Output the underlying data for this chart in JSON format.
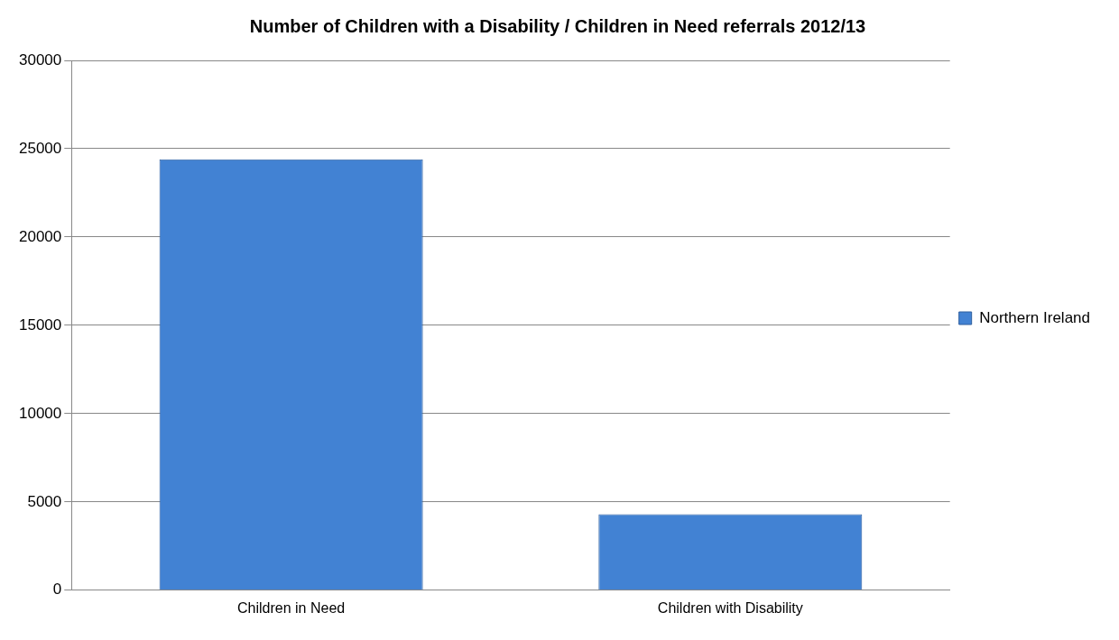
{
  "chart_data": {
    "type": "bar",
    "title": "Number of Children with a Disability / Children in Need referrals 2012/13",
    "categories": [
      "Children in Need",
      "Children with Disability"
    ],
    "series": [
      {
        "name": "Northern Ireland",
        "color": "#4282d3",
        "values": [
          24400,
          4300
        ]
      }
    ],
    "ylim": [
      0,
      30000
    ],
    "yticks": [
      0,
      5000,
      10000,
      15000,
      20000,
      25000,
      30000
    ],
    "grid": "y",
    "legend": "right"
  }
}
